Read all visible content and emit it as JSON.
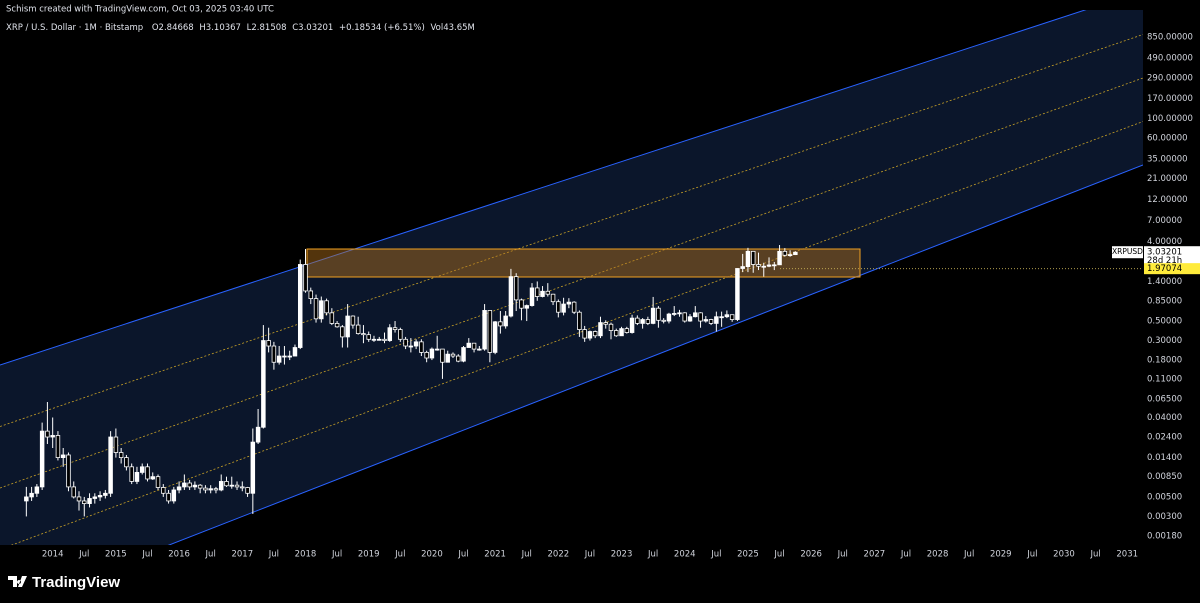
{
  "watermark": "Schism created with TradingView.com, Oct 03, 2025 03:40 UTC",
  "brand": "TradingView",
  "chart_data": {
    "type": "candlestick",
    "title": "XRP / U.S. Dollar · 1M · Bitstamp",
    "ohlc_legend": [
      "O2.84668",
      "H3.10367",
      "L2.81508",
      "C3.03201",
      "+0.18534 (+6.51%)",
      "Vol43.65M"
    ],
    "x": [
      "2013-08",
      "2013-09",
      "2013-10",
      "2013-11",
      "2013-12",
      "2014-01",
      "2014-02",
      "2014-03",
      "2014-04",
      "2014-05",
      "2014-06",
      "2014-07",
      "2014-08",
      "2014-09",
      "2014-10",
      "2014-11",
      "2014-12",
      "2015-01",
      "2015-02",
      "2015-03",
      "2015-04",
      "2015-05",
      "2015-06",
      "2015-07",
      "2015-08",
      "2015-09",
      "2015-10",
      "2015-11",
      "2015-12",
      "2016-01",
      "2016-02",
      "2016-03",
      "2016-04",
      "2016-05",
      "2016-06",
      "2016-07",
      "2016-08",
      "2016-09",
      "2016-10",
      "2016-11",
      "2016-12",
      "2017-01",
      "2017-02",
      "2017-03",
      "2017-04",
      "2017-05",
      "2017-06",
      "2017-07",
      "2017-08",
      "2017-09",
      "2017-10",
      "2017-11",
      "2017-12",
      "2018-01",
      "2018-02",
      "2018-03",
      "2018-04",
      "2018-05",
      "2018-06",
      "2018-07",
      "2018-08",
      "2018-09",
      "2018-10",
      "2018-11",
      "2018-12",
      "2019-01",
      "2019-02",
      "2019-03",
      "2019-04",
      "2019-05",
      "2019-06",
      "2019-07",
      "2019-08",
      "2019-09",
      "2019-10",
      "2019-11",
      "2019-12",
      "2020-01",
      "2020-02",
      "2020-03",
      "2020-04",
      "2020-05",
      "2020-06",
      "2020-07",
      "2020-08",
      "2020-09",
      "2020-10",
      "2020-11",
      "2020-12",
      "2021-01",
      "2021-02",
      "2021-03",
      "2021-04",
      "2021-05",
      "2021-06",
      "2021-07",
      "2021-08",
      "2021-09",
      "2021-10",
      "2021-11",
      "2021-12",
      "2022-01",
      "2022-02",
      "2022-03",
      "2022-04",
      "2022-05",
      "2022-06",
      "2022-07",
      "2022-08",
      "2022-09",
      "2022-10",
      "2022-11",
      "2022-12",
      "2023-01",
      "2023-02",
      "2023-03",
      "2023-04",
      "2023-05",
      "2023-06",
      "2023-07",
      "2023-08",
      "2023-09",
      "2023-10",
      "2023-11",
      "2023-12",
      "2024-01",
      "2024-02",
      "2024-03",
      "2024-04",
      "2024-05",
      "2024-06",
      "2024-07",
      "2024-08",
      "2024-09",
      "2024-10",
      "2024-11",
      "2024-12",
      "2025-01",
      "2025-02",
      "2025-03",
      "2025-04",
      "2025-05",
      "2025-06",
      "2025-07",
      "2025-08",
      "2025-09",
      "2025-10"
    ],
    "open": [
      0.0045,
      0.005,
      0.0055,
      0.0065,
      0.028,
      0.024,
      0.025,
      0.014,
      0.015,
      0.0065,
      0.005,
      0.0045,
      0.0042,
      0.0048,
      0.005,
      0.0052,
      0.0055,
      0.024,
      0.016,
      0.014,
      0.011,
      0.0075,
      0.0095,
      0.011,
      0.008,
      0.0085,
      0.0064,
      0.0055,
      0.0045,
      0.006,
      0.0065,
      0.0072,
      0.0065,
      0.0068,
      0.0063,
      0.006,
      0.0062,
      0.006,
      0.0075,
      0.0067,
      0.0068,
      0.0065,
      0.0064,
      0.0055,
      0.021,
      0.031,
      0.3,
      0.26,
      0.17,
      0.2,
      0.2,
      0.2,
      0.25,
      2.2,
      1.1,
      0.9,
      0.53,
      0.85,
      0.62,
      0.47,
      0.43,
      0.33,
      0.57,
      0.45,
      0.36,
      0.35,
      0.31,
      0.31,
      0.31,
      0.3,
      0.42,
      0.4,
      0.31,
      0.26,
      0.26,
      0.29,
      0.22,
      0.19,
      0.24,
      0.24,
      0.17,
      0.21,
      0.2,
      0.175,
      0.25,
      0.28,
      0.24,
      0.24,
      0.66,
      0.22,
      0.49,
      0.44,
      0.57,
      1.6,
      0.87,
      0.7,
      0.75,
      1.19,
      0.95,
      1.09,
      1.01,
      0.83,
      0.63,
      0.78,
      0.82,
      0.63,
      0.4,
      0.32,
      0.38,
      0.34,
      0.48,
      0.46,
      0.39,
      0.34,
      0.41,
      0.37,
      0.54,
      0.47,
      0.52,
      0.47,
      0.7,
      0.51,
      0.5,
      0.6,
      0.61,
      0.62,
      0.5,
      0.56,
      0.62,
      0.5,
      0.52,
      0.47,
      0.56,
      0.56,
      0.59,
      0.52,
      1.98,
      2.08,
      3.1,
      2.2,
      2.1,
      2.1,
      2.17,
      2.18,
      3.1,
      2.8,
      2.84668
    ],
    "high": [
      0.0065,
      0.0065,
      0.007,
      0.035,
      0.06,
      0.04,
      0.028,
      0.018,
      0.016,
      0.0075,
      0.0058,
      0.005,
      0.0055,
      0.0055,
      0.0058,
      0.006,
      0.028,
      0.03,
      0.018,
      0.015,
      0.012,
      0.011,
      0.012,
      0.012,
      0.0095,
      0.009,
      0.007,
      0.006,
      0.0065,
      0.0075,
      0.009,
      0.0078,
      0.0075,
      0.007,
      0.0068,
      0.0068,
      0.0065,
      0.009,
      0.0085,
      0.0085,
      0.0075,
      0.0075,
      0.0065,
      0.03,
      0.05,
      0.45,
      0.42,
      0.29,
      0.26,
      0.26,
      0.23,
      0.27,
      2.5,
      3.3,
      1.2,
      1.0,
      0.95,
      0.9,
      0.7,
      0.5,
      0.45,
      0.78,
      0.58,
      0.56,
      0.45,
      0.38,
      0.34,
      0.33,
      0.37,
      0.46,
      0.5,
      0.42,
      0.33,
      0.32,
      0.31,
      0.31,
      0.23,
      0.25,
      0.34,
      0.24,
      0.23,
      0.22,
      0.21,
      0.26,
      0.32,
      0.28,
      0.26,
      0.78,
      0.66,
      0.5,
      0.65,
      0.65,
      1.96,
      1.75,
      0.9,
      0.77,
      1.35,
      1.41,
      1.25,
      1.35,
      1.02,
      0.88,
      0.92,
      0.91,
      0.84,
      0.66,
      0.44,
      0.39,
      0.39,
      0.56,
      0.51,
      0.48,
      0.41,
      0.43,
      0.43,
      0.59,
      0.58,
      0.54,
      0.56,
      0.94,
      0.74,
      0.54,
      0.62,
      0.74,
      0.67,
      0.63,
      0.6,
      0.74,
      0.63,
      0.57,
      0.53,
      0.64,
      0.64,
      0.66,
      0.59,
      1.99,
      2.9,
      3.4,
      3.1,
      3.0,
      2.3,
      2.65,
      2.35,
      3.66,
      3.38,
      3.19,
      3.10367
    ],
    "low": [
      0.003,
      0.0045,
      0.005,
      0.006,
      0.02,
      0.018,
      0.013,
      0.011,
      0.0058,
      0.0048,
      0.0035,
      0.003,
      0.0038,
      0.0042,
      0.0045,
      0.0048,
      0.005,
      0.014,
      0.012,
      0.01,
      0.007,
      0.007,
      0.009,
      0.0075,
      0.0078,
      0.006,
      0.005,
      0.0042,
      0.0042,
      0.0055,
      0.006,
      0.006,
      0.006,
      0.0055,
      0.0055,
      0.0055,
      0.0055,
      0.0058,
      0.0065,
      0.0062,
      0.006,
      0.0058,
      0.005,
      0.0032,
      0.02,
      0.03,
      0.22,
      0.14,
      0.16,
      0.16,
      0.18,
      0.2,
      0.24,
      1.05,
      0.78,
      0.48,
      0.48,
      0.58,
      0.45,
      0.42,
      0.25,
      0.25,
      0.41,
      0.35,
      0.28,
      0.29,
      0.29,
      0.3,
      0.28,
      0.29,
      0.37,
      0.29,
      0.24,
      0.22,
      0.24,
      0.2,
      0.17,
      0.18,
      0.23,
      0.11,
      0.17,
      0.19,
      0.17,
      0.17,
      0.25,
      0.22,
      0.23,
      0.23,
      0.17,
      0.21,
      0.36,
      0.41,
      0.55,
      0.65,
      0.51,
      0.5,
      0.73,
      0.85,
      0.93,
      0.95,
      0.76,
      0.55,
      0.58,
      0.7,
      0.6,
      0.33,
      0.29,
      0.3,
      0.32,
      0.32,
      0.41,
      0.31,
      0.33,
      0.34,
      0.36,
      0.36,
      0.45,
      0.41,
      0.45,
      0.46,
      0.42,
      0.47,
      0.47,
      0.57,
      0.56,
      0.48,
      0.49,
      0.55,
      0.42,
      0.48,
      0.45,
      0.38,
      0.43,
      0.54,
      0.49,
      0.5,
      1.8,
      1.8,
      1.77,
      1.9,
      1.6,
      2.05,
      1.9,
      2.18,
      2.7,
      2.69,
      2.81508
    ],
    "close": [
      0.005,
      0.0055,
      0.0065,
      0.028,
      0.024,
      0.025,
      0.014,
      0.015,
      0.0065,
      0.005,
      0.0045,
      0.0042,
      0.0048,
      0.005,
      0.0052,
      0.0055,
      0.024,
      0.016,
      0.014,
      0.011,
      0.0075,
      0.0095,
      0.011,
      0.008,
      0.0085,
      0.0064,
      0.0055,
      0.0045,
      0.006,
      0.0065,
      0.0072,
      0.0065,
      0.0068,
      0.0063,
      0.006,
      0.0062,
      0.006,
      0.0075,
      0.0067,
      0.0068,
      0.0065,
      0.0064,
      0.0055,
      0.021,
      0.031,
      0.3,
      0.26,
      0.17,
      0.2,
      0.2,
      0.2,
      0.25,
      2.2,
      1.1,
      0.9,
      0.53,
      0.85,
      0.62,
      0.47,
      0.43,
      0.33,
      0.57,
      0.45,
      0.36,
      0.35,
      0.31,
      0.31,
      0.31,
      0.3,
      0.42,
      0.4,
      0.31,
      0.26,
      0.26,
      0.29,
      0.22,
      0.19,
      0.24,
      0.24,
      0.17,
      0.21,
      0.2,
      0.175,
      0.25,
      0.28,
      0.24,
      0.24,
      0.66,
      0.22,
      0.49,
      0.44,
      0.57,
      1.6,
      0.87,
      0.7,
      0.75,
      1.19,
      0.95,
      1.09,
      1.01,
      0.83,
      0.63,
      0.78,
      0.82,
      0.63,
      0.4,
      0.32,
      0.38,
      0.34,
      0.48,
      0.46,
      0.39,
      0.34,
      0.41,
      0.37,
      0.54,
      0.47,
      0.52,
      0.47,
      0.7,
      0.51,
      0.5,
      0.6,
      0.61,
      0.62,
      0.5,
      0.56,
      0.62,
      0.5,
      0.52,
      0.47,
      0.56,
      0.56,
      0.59,
      0.52,
      1.98,
      2.08,
      3.1,
      2.2,
      2.1,
      2.1,
      2.17,
      2.18,
      3.1,
      2.8,
      2.85,
      3.03201
    ],
    "up_color": "#ffffff",
    "down_color": "#000000",
    "log_scale": true,
    "grid": false,
    "ylim": [
      0.00142,
      1722
    ],
    "yticks": [
      {
        "value": 850,
        "label": "850.00000"
      },
      {
        "value": 490,
        "label": "490.00000"
      },
      {
        "value": 290,
        "label": "290.00000"
      },
      {
        "value": 170,
        "label": "170.00000"
      },
      {
        "value": 100,
        "label": "100.00000"
      },
      {
        "value": 60,
        "label": "60.00000"
      },
      {
        "value": 35,
        "label": "35.00000"
      },
      {
        "value": 21,
        "label": "21.00000"
      },
      {
        "value": 12,
        "label": "12.00000"
      },
      {
        "value": 7,
        "label": "7.00000"
      },
      {
        "value": 4,
        "label": "4.00000"
      },
      {
        "value": 1.4,
        "label": "1.40000"
      },
      {
        "value": 0.85,
        "label": "0.85000"
      },
      {
        "value": 0.5,
        "label": "0.50000"
      },
      {
        "value": 0.3,
        "label": "0.30000"
      },
      {
        "value": 0.18,
        "label": "0.18000"
      },
      {
        "value": 0.11,
        "label": "0.11000"
      },
      {
        "value": 0.065,
        "label": "0.06500"
      },
      {
        "value": 0.04,
        "label": "0.04000"
      },
      {
        "value": 0.024,
        "label": "0.02400"
      },
      {
        "value": 0.014,
        "label": "0.01400"
      },
      {
        "value": 0.0085,
        "label": "0.00850"
      },
      {
        "value": 0.005,
        "label": "0.00500"
      },
      {
        "value": 0.003,
        "label": "0.00300"
      },
      {
        "value": 0.0018,
        "label": "0.00180"
      }
    ],
    "xlim": [
      "2013-03",
      "2031-04"
    ],
    "xticks": [
      {
        "value": "2014-01",
        "label": "2014"
      },
      {
        "value": "2014-07",
        "label": "Jul"
      },
      {
        "value": "2015-01",
        "label": "2015"
      },
      {
        "value": "2015-07",
        "label": "Jul"
      },
      {
        "value": "2016-01",
        "label": "2016"
      },
      {
        "value": "2016-07",
        "label": "Jul"
      },
      {
        "value": "2017-01",
        "label": "2017"
      },
      {
        "value": "2017-07",
        "label": "Jul"
      },
      {
        "value": "2018-01",
        "label": "2018"
      },
      {
        "value": "2018-07",
        "label": "Jul"
      },
      {
        "value": "2019-01",
        "label": "2019"
      },
      {
        "value": "2019-07",
        "label": "Jul"
      },
      {
        "value": "2020-01",
        "label": "2020"
      },
      {
        "value": "2020-07",
        "label": "Jul"
      },
      {
        "value": "2021-01",
        "label": "2021"
      },
      {
        "value": "2021-07",
        "label": "Jul"
      },
      {
        "value": "2022-01",
        "label": "2022"
      },
      {
        "value": "2022-07",
        "label": "Jul"
      },
      {
        "value": "2023-01",
        "label": "2023"
      },
      {
        "value": "2023-07",
        "label": "Jul"
      },
      {
        "value": "2024-01",
        "label": "2024"
      },
      {
        "value": "2024-07",
        "label": "Jul"
      },
      {
        "value": "2025-01",
        "label": "2025"
      },
      {
        "value": "2025-07",
        "label": "Jul"
      },
      {
        "value": "2026-01",
        "label": "2026"
      },
      {
        "value": "2026-07",
        "label": "Jul"
      },
      {
        "value": "2027-01",
        "label": "2027"
      },
      {
        "value": "2027-07",
        "label": "Jul"
      },
      {
        "value": "2028-01",
        "label": "2028"
      },
      {
        "value": "2028-07",
        "label": "Jul"
      },
      {
        "value": "2029-01",
        "label": "2029"
      },
      {
        "value": "2029-07",
        "label": "Jul"
      },
      {
        "value": "2030-01",
        "label": "2030"
      },
      {
        "value": "2030-07",
        "label": "Jul"
      },
      {
        "value": "2031-01",
        "label": "2031"
      }
    ],
    "last_price": {
      "symbol": "XRPUSD",
      "value": 3.03201,
      "countdown": "28d 21h"
    },
    "marked_level": 1.97074
  }
}
